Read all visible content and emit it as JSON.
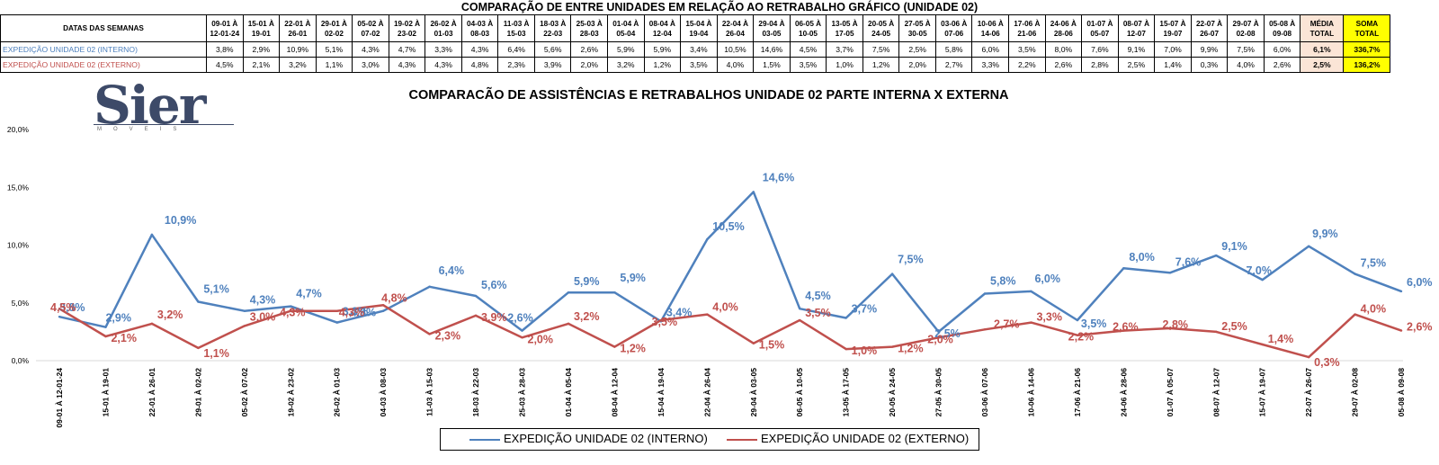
{
  "title": "COMPARAÇÃO DE ENTRE UNIDADES EM RELAÇÃO AO RETRABALHO GRÁFICO (UNIDADE 02)",
  "table": {
    "header_label": "DATAS DAS SEMANAS",
    "weeks": [
      [
        "09-01 À",
        "12-01-24"
      ],
      [
        "15-01 À",
        "19-01"
      ],
      [
        "22-01 À",
        "26-01"
      ],
      [
        "29-01 À",
        "02-02"
      ],
      [
        "05-02 À",
        "07-02"
      ],
      [
        "19-02 À",
        "23-02"
      ],
      [
        "26-02 À",
        "01-03"
      ],
      [
        "04-03 À",
        "08-03"
      ],
      [
        "11-03 À",
        "15-03"
      ],
      [
        "18-03 À",
        "22-03"
      ],
      [
        "25-03 À",
        "28-03"
      ],
      [
        "01-04 À",
        "05-04"
      ],
      [
        "08-04 À",
        "12-04"
      ],
      [
        "15-04 À",
        "19-04"
      ],
      [
        "22-04 À",
        "26-04"
      ],
      [
        "29-04 À",
        "03-05"
      ],
      [
        "06-05 À",
        "10-05"
      ],
      [
        "13-05 À",
        "17-05"
      ],
      [
        "20-05 À",
        "24-05"
      ],
      [
        "27-05 À",
        "30-05"
      ],
      [
        "03-06 À",
        "07-06"
      ],
      [
        "10-06 À",
        "14-06"
      ],
      [
        "17-06 À",
        "21-06"
      ],
      [
        "24-06 À",
        "28-06"
      ],
      [
        "01-07 À",
        "05-07"
      ],
      [
        "08-07 À",
        "12-07"
      ],
      [
        "15-07 À",
        "19-07"
      ],
      [
        "22-07 À",
        "26-07"
      ],
      [
        "29-07 À",
        "02-08"
      ],
      [
        "05-08 À",
        "09-08"
      ]
    ],
    "media_header": [
      "MÉDIA",
      "TOTAL"
    ],
    "soma_header": [
      "SOMA",
      "TOTAL"
    ],
    "rows": [
      {
        "label": "EXPEDIÇÃO UNIDADE 02 (INTERNO)",
        "color": "#4f81bd",
        "values": [
          "3,8%",
          "2,9%",
          "10,9%",
          "5,1%",
          "4,3%",
          "4,7%",
          "3,3%",
          "4,3%",
          "6,4%",
          "5,6%",
          "2,6%",
          "5,9%",
          "5,9%",
          "3,4%",
          "10,5%",
          "14,6%",
          "4,5%",
          "3,7%",
          "7,5%",
          "2,5%",
          "5,8%",
          "6,0%",
          "3,5%",
          "8,0%",
          "7,6%",
          "9,1%",
          "7,0%",
          "9,9%",
          "7,5%",
          "6,0%"
        ],
        "media": "6,1%",
        "soma": "336,7%"
      },
      {
        "label": "EXPEDIÇÃO UNIDADE 02 (EXTERNO)",
        "color": "#c0504d",
        "values": [
          "4,5%",
          "2,1%",
          "3,2%",
          "1,1%",
          "3,0%",
          "4,3%",
          "4,3%",
          "4,8%",
          "2,3%",
          "3,9%",
          "2,0%",
          "3,2%",
          "1,2%",
          "3,5%",
          "4,0%",
          "1,5%",
          "3,5%",
          "1,0%",
          "1,2%",
          "2,0%",
          "2,7%",
          "3,3%",
          "2,2%",
          "2,6%",
          "2,8%",
          "2,5%",
          "1,4%",
          "0,3%",
          "4,0%",
          "2,6%"
        ],
        "media": "2,5%",
        "soma": "136,2%"
      }
    ]
  },
  "logo": {
    "name": "Sier",
    "sub": "MOVEIS"
  },
  "chart_data": {
    "type": "line",
    "title": "COMPARACÃO DE ASSISTÊNCIAS E RETRABALHOS UNIDADE 02 PARTE INTERNA X EXTERNA",
    "categories": [
      "09-01 À 12-01-24",
      "15-01 À 19-01",
      "22-01 À 26-01",
      "29-01 À 02-02",
      "05-02 À 07-02",
      "19-02 À 23-02",
      "26-02 À 01-03",
      "04-03 À 08-03",
      "11-03 À 15-03",
      "18-03 À 22-03",
      "25-03 À 28-03",
      "01-04 À 05-04",
      "08-04 À 12-04",
      "15-04 À 19-04",
      "22-04 À 26-04",
      "29-04 À 03-05",
      "06-05 À 10-05",
      "13-05 À 17-05",
      "20-05 À 24-05",
      "27-05 À 30-05",
      "03-06 À 07-06",
      "10-06 À 14-06",
      "17-06 À 21-06",
      "24-06 À 28-06",
      "01-07 À 05-07",
      "08-07 À 12-07",
      "15-07 À 19-07",
      "22-07 À 26-07",
      "29-07 À 02-08",
      "05-08 À 09-08"
    ],
    "series": [
      {
        "name": "EXPEDIÇÃO UNIDADE 02 (INTERNO)",
        "color": "#4f81bd",
        "values": [
          3.8,
          2.9,
          10.9,
          5.1,
          4.3,
          4.7,
          3.3,
          4.3,
          6.4,
          5.6,
          2.6,
          5.9,
          5.9,
          3.4,
          10.5,
          14.6,
          4.5,
          3.7,
          7.5,
          2.5,
          5.8,
          6.0,
          3.5,
          8.0,
          7.6,
          9.1,
          7.0,
          9.9,
          7.5,
          6.0
        ],
        "labels": [
          "3,8%",
          "2,9%",
          "10,9%",
          "5,1%",
          "4,3%",
          "4,7%",
          "3,3%",
          "4,3%",
          "6,4%",
          "5,6%",
          "2,6%",
          "5,9%",
          "5,9%",
          "3,4%",
          "10,5%",
          "14,6%",
          "4,5%",
          "3,7%",
          "7,5%",
          "2,5%",
          "5,8%",
          "6,0%",
          "3,5%",
          "8,0%",
          "7,6%",
          "9,1%",
          "7,0%",
          "9,9%",
          "7,5%",
          "6,0%"
        ]
      },
      {
        "name": "EXPEDIÇÃO UNIDADE 02 (EXTERNO)",
        "color": "#c0504d",
        "values": [
          4.5,
          2.1,
          3.2,
          1.1,
          3.0,
          4.3,
          4.3,
          4.8,
          2.3,
          3.9,
          2.0,
          3.2,
          1.2,
          3.5,
          4.0,
          1.5,
          3.5,
          1.0,
          1.2,
          2.0,
          2.7,
          3.3,
          2.2,
          2.6,
          2.8,
          2.5,
          1.4,
          0.3,
          4.0,
          2.6
        ],
        "labels": [
          "4,5%",
          "2,1%",
          "3,2%",
          "1,1%",
          "3,0%",
          "4,3%",
          "4,3%",
          "4,8%",
          "2,3%",
          "3,9%",
          "2,0%",
          "3,2%",
          "1,2%",
          "3,5%",
          "4,0%",
          "1,5%",
          "3,5%",
          "1,0%",
          "1,2%",
          "2,0%",
          "2,7%",
          "3,3%",
          "2,2%",
          "2,6%",
          "2,8%",
          "2,5%",
          "1,4%",
          "0,3%",
          "4,0%",
          "2,6%"
        ]
      }
    ],
    "y_ticks": [
      "0,0%",
      "5,0%",
      "10,0%",
      "15,0%",
      "20,0%"
    ],
    "ylim": [
      0,
      20
    ],
    "grid": false,
    "legend_position": "bottom"
  }
}
